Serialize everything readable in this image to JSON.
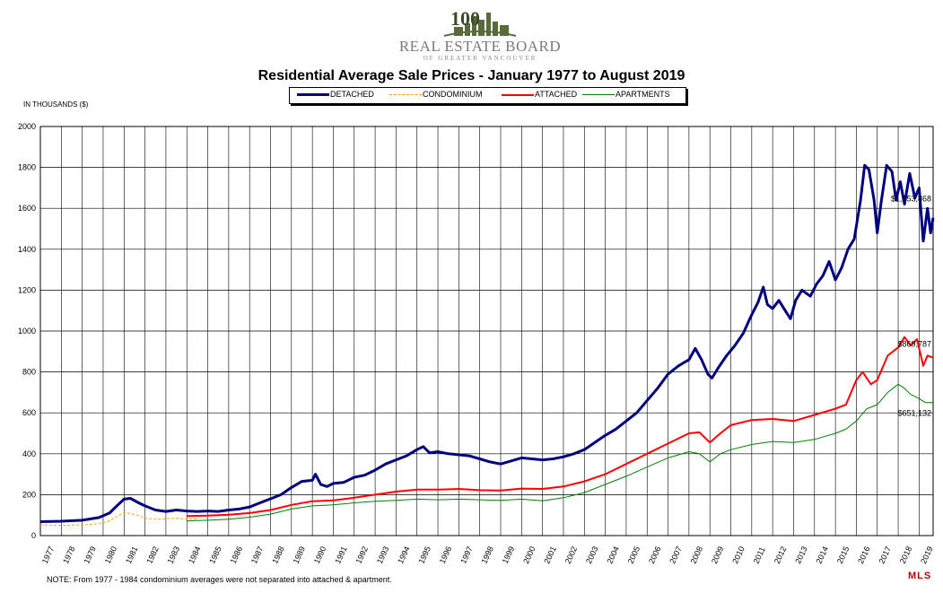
{
  "header": {
    "brand": "REAL ESTATE BOARD",
    "brand_sub": "OF GREATER VANCOUVER",
    "logo_number": "100"
  },
  "footnote": "NOTE:  From 1977 - 1984 condominium averages were not separated into attached & apartment.",
  "mls_logo": "MLS",
  "chart_data": {
    "type": "line",
    "title": "Residential Average Sale Prices  -  January 1977 to August 2019",
    "ylabel": "IN THOUSANDS ($)",
    "xlabel": "",
    "ylim": [
      0,
      2000
    ],
    "xlim": [
      1977.0,
      2019.67
    ],
    "yticks": [
      0,
      200,
      400,
      600,
      800,
      1000,
      1200,
      1400,
      1600,
      1800,
      2000
    ],
    "xticks": [
      1977,
      1978,
      1979,
      1980,
      1981,
      1982,
      1983,
      1984,
      1985,
      1986,
      1987,
      1988,
      1989,
      1990,
      1991,
      1992,
      1993,
      1994,
      1995,
      1996,
      1997,
      1998,
      1999,
      2000,
      2001,
      2002,
      2003,
      2004,
      2005,
      2006,
      2007,
      2008,
      2009,
      2010,
      2011,
      2012,
      2013,
      2014,
      2015,
      2016,
      2017,
      2018,
      2019
    ],
    "grid": true,
    "legend_position": "top-center",
    "annotations": [
      {
        "text": "$1,553,868",
        "x": 2019.6,
        "y": 1554
      },
      {
        "text": "$869,787",
        "x": 2019.6,
        "y": 870
      },
      {
        "text": "$651,132",
        "x": 2019.6,
        "y": 651
      }
    ],
    "series": [
      {
        "name": "DETACHED",
        "color": "#000080",
        "width": 3,
        "dash": "",
        "points": [
          [
            1977.0,
            68
          ],
          [
            1978.0,
            70
          ],
          [
            1979.0,
            75
          ],
          [
            1979.8,
            88
          ],
          [
            1980.3,
            110
          ],
          [
            1980.7,
            150
          ],
          [
            1981.0,
            178
          ],
          [
            1981.3,
            182
          ],
          [
            1981.7,
            160
          ],
          [
            1982.0,
            145
          ],
          [
            1982.5,
            125
          ],
          [
            1983.0,
            118
          ],
          [
            1983.5,
            125
          ],
          [
            1984.0,
            120
          ],
          [
            1984.5,
            118
          ],
          [
            1985.0,
            120
          ],
          [
            1985.5,
            118
          ],
          [
            1986.0,
            125
          ],
          [
            1986.5,
            130
          ],
          [
            1987.0,
            140
          ],
          [
            1987.5,
            160
          ],
          [
            1988.0,
            180
          ],
          [
            1988.5,
            200
          ],
          [
            1989.0,
            235
          ],
          [
            1989.5,
            265
          ],
          [
            1990.0,
            270
          ],
          [
            1990.15,
            300
          ],
          [
            1990.4,
            250
          ],
          [
            1990.7,
            240
          ],
          [
            1991.0,
            255
          ],
          [
            1991.5,
            260
          ],
          [
            1992.0,
            285
          ],
          [
            1992.5,
            295
          ],
          [
            1993.0,
            320
          ],
          [
            1993.5,
            350
          ],
          [
            1994.0,
            370
          ],
          [
            1994.5,
            390
          ],
          [
            1995.0,
            420
          ],
          [
            1995.3,
            435
          ],
          [
            1995.6,
            405
          ],
          [
            1996.0,
            410
          ],
          [
            1996.5,
            400
          ],
          [
            1997.0,
            395
          ],
          [
            1997.5,
            390
          ],
          [
            1998.0,
            375
          ],
          [
            1998.5,
            360
          ],
          [
            1999.0,
            350
          ],
          [
            1999.5,
            365
          ],
          [
            2000.0,
            380
          ],
          [
            2000.5,
            375
          ],
          [
            2001.0,
            370
          ],
          [
            2001.5,
            375
          ],
          [
            2002.0,
            385
          ],
          [
            2002.5,
            400
          ],
          [
            2003.0,
            420
          ],
          [
            2003.5,
            455
          ],
          [
            2004.0,
            490
          ],
          [
            2004.5,
            520
          ],
          [
            2005.0,
            560
          ],
          [
            2005.5,
            600
          ],
          [
            2006.0,
            660
          ],
          [
            2006.5,
            720
          ],
          [
            2007.0,
            790
          ],
          [
            2007.5,
            830
          ],
          [
            2008.0,
            860
          ],
          [
            2008.3,
            915
          ],
          [
            2008.6,
            860
          ],
          [
            2008.9,
            790
          ],
          [
            2009.1,
            770
          ],
          [
            2009.4,
            820
          ],
          [
            2009.8,
            880
          ],
          [
            2010.2,
            930
          ],
          [
            2010.6,
            990
          ],
          [
            2011.0,
            1080
          ],
          [
            2011.3,
            1140
          ],
          [
            2011.55,
            1215
          ],
          [
            2011.75,
            1130
          ],
          [
            2012.0,
            1110
          ],
          [
            2012.3,
            1150
          ],
          [
            2012.6,
            1100
          ],
          [
            2012.85,
            1060
          ],
          [
            2013.1,
            1150
          ],
          [
            2013.4,
            1200
          ],
          [
            2013.8,
            1170
          ],
          [
            2014.1,
            1230
          ],
          [
            2014.4,
            1270
          ],
          [
            2014.7,
            1340
          ],
          [
            2015.0,
            1250
          ],
          [
            2015.3,
            1310
          ],
          [
            2015.6,
            1400
          ],
          [
            2015.9,
            1450
          ],
          [
            2016.2,
            1640
          ],
          [
            2016.4,
            1810
          ],
          [
            2016.6,
            1790
          ],
          [
            2016.85,
            1640
          ],
          [
            2017.0,
            1480
          ],
          [
            2017.2,
            1640
          ],
          [
            2017.45,
            1810
          ],
          [
            2017.7,
            1780
          ],
          [
            2017.9,
            1640
          ],
          [
            2018.1,
            1730
          ],
          [
            2018.3,
            1620
          ],
          [
            2018.55,
            1770
          ],
          [
            2018.8,
            1650
          ],
          [
            2019.0,
            1700
          ],
          [
            2019.2,
            1440
          ],
          [
            2019.4,
            1600
          ],
          [
            2019.55,
            1480
          ],
          [
            2019.67,
            1554
          ]
        ]
      },
      {
        "name": "CONDOMINIUM",
        "color": "#FFA500",
        "width": 1,
        "dash": "3,2",
        "points": [
          [
            1977.0,
            52
          ],
          [
            1978.0,
            50
          ],
          [
            1979.0,
            52
          ],
          [
            1979.8,
            58
          ],
          [
            1980.3,
            72
          ],
          [
            1980.7,
            95
          ],
          [
            1981.0,
            112
          ],
          [
            1981.3,
            108
          ],
          [
            1981.7,
            98
          ],
          [
            1982.0,
            85
          ],
          [
            1982.5,
            80
          ],
          [
            1983.0,
            83
          ],
          [
            1983.5,
            85
          ],
          [
            1984.0,
            80
          ],
          [
            1984.5,
            82
          ]
        ]
      },
      {
        "name": "ATTACHED",
        "color": "#FF0000",
        "width": 2,
        "dash": "",
        "points": [
          [
            1984.0,
            95
          ],
          [
            1985.0,
            98
          ],
          [
            1986.0,
            102
          ],
          [
            1987.0,
            110
          ],
          [
            1988.0,
            125
          ],
          [
            1989.0,
            150
          ],
          [
            1990.0,
            168
          ],
          [
            1991.0,
            172
          ],
          [
            1992.0,
            185
          ],
          [
            1993.0,
            200
          ],
          [
            1994.0,
            215
          ],
          [
            1995.0,
            225
          ],
          [
            1996.0,
            225
          ],
          [
            1997.0,
            228
          ],
          [
            1998.0,
            222
          ],
          [
            1999.0,
            220
          ],
          [
            2000.0,
            230
          ],
          [
            2001.0,
            228
          ],
          [
            2002.0,
            240
          ],
          [
            2003.0,
            265
          ],
          [
            2004.0,
            300
          ],
          [
            2005.0,
            350
          ],
          [
            2006.0,
            400
          ],
          [
            2007.0,
            450
          ],
          [
            2008.0,
            500
          ],
          [
            2008.5,
            505
          ],
          [
            2009.0,
            455
          ],
          [
            2009.5,
            500
          ],
          [
            2010.0,
            540
          ],
          [
            2011.0,
            565
          ],
          [
            2012.0,
            570
          ],
          [
            2013.0,
            560
          ],
          [
            2014.0,
            590
          ],
          [
            2015.0,
            620
          ],
          [
            2015.5,
            640
          ],
          [
            2016.0,
            760
          ],
          [
            2016.3,
            800
          ],
          [
            2016.7,
            740
          ],
          [
            2017.0,
            760
          ],
          [
            2017.5,
            880
          ],
          [
            2018.0,
            920
          ],
          [
            2018.3,
            970
          ],
          [
            2018.6,
            930
          ],
          [
            2018.9,
            960
          ],
          [
            2019.2,
            830
          ],
          [
            2019.4,
            880
          ],
          [
            2019.67,
            870
          ]
        ]
      },
      {
        "name": "APARTMENTS",
        "color": "#008000",
        "width": 1,
        "dash": "",
        "points": [
          [
            1984.0,
            72
          ],
          [
            1985.0,
            75
          ],
          [
            1986.0,
            80
          ],
          [
            1987.0,
            90
          ],
          [
            1988.0,
            105
          ],
          [
            1989.0,
            130
          ],
          [
            1990.0,
            145
          ],
          [
            1991.0,
            150
          ],
          [
            1992.0,
            160
          ],
          [
            1993.0,
            168
          ],
          [
            1994.0,
            172
          ],
          [
            1995.0,
            178
          ],
          [
            1996.0,
            175
          ],
          [
            1997.0,
            178
          ],
          [
            1998.0,
            175
          ],
          [
            1999.0,
            172
          ],
          [
            2000.0,
            178
          ],
          [
            2001.0,
            170
          ],
          [
            2002.0,
            185
          ],
          [
            2003.0,
            210
          ],
          [
            2004.0,
            250
          ],
          [
            2005.0,
            290
          ],
          [
            2006.0,
            335
          ],
          [
            2007.0,
            380
          ],
          [
            2008.0,
            410
          ],
          [
            2008.5,
            400
          ],
          [
            2009.0,
            360
          ],
          [
            2009.5,
            400
          ],
          [
            2010.0,
            420
          ],
          [
            2011.0,
            445
          ],
          [
            2012.0,
            460
          ],
          [
            2013.0,
            455
          ],
          [
            2014.0,
            470
          ],
          [
            2015.0,
            500
          ],
          [
            2015.5,
            520
          ],
          [
            2016.0,
            560
          ],
          [
            2016.5,
            620
          ],
          [
            2017.0,
            640
          ],
          [
            2017.5,
            700
          ],
          [
            2018.0,
            740
          ],
          [
            2018.3,
            720
          ],
          [
            2018.6,
            690
          ],
          [
            2019.0,
            670
          ],
          [
            2019.3,
            650
          ],
          [
            2019.67,
            651
          ]
        ]
      }
    ]
  }
}
